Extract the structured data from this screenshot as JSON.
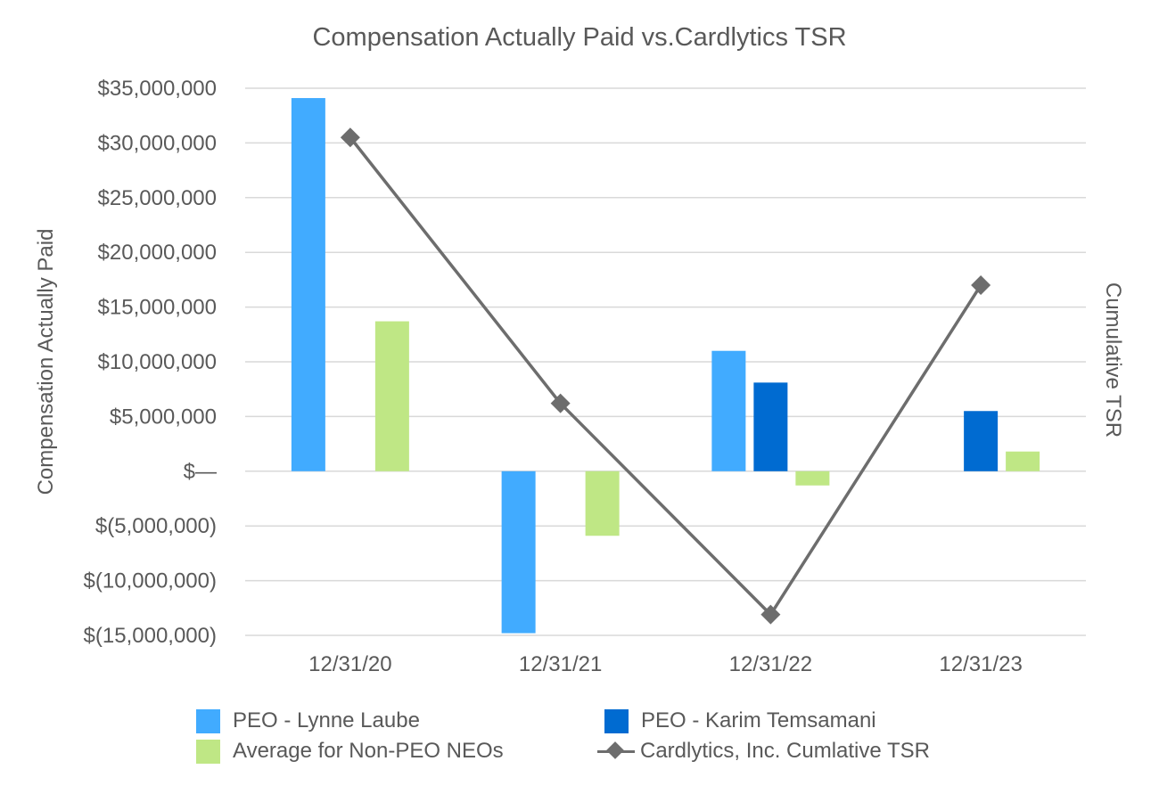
{
  "chart_data": {
    "type": "bar",
    "title": "Compensation Actually Paid vs.Cardlytics TSR",
    "ylabel": "Compensation Actually Paid",
    "y2label": "Cumulative TSR",
    "categories": [
      "12/31/20",
      "12/31/21",
      "12/31/22",
      "12/31/23"
    ],
    "ylim": [
      -15000000,
      35000000
    ],
    "yticks": [
      35000000,
      30000000,
      25000000,
      20000000,
      15000000,
      10000000,
      5000000,
      0,
      -5000000,
      -10000000,
      -15000000
    ],
    "ytick_labels": [
      "$35,000,000",
      "$30,000,000",
      "$25,000,000",
      "$20,000,000",
      "$15,000,000",
      "$10,000,000",
      "$5,000,000",
      "$—",
      "$(5,000,000)",
      "$(10,000,000)",
      "$(15,000,000)"
    ],
    "grid": true,
    "legend_position": "bottom",
    "series": [
      {
        "name": "PEO - Lynne Laube",
        "kind": "bar",
        "color": "#41abff",
        "values": [
          34100000,
          -14800000,
          11000000,
          null
        ]
      },
      {
        "name": "PEO - Karim Temsamani",
        "kind": "bar",
        "color": "#006bd1",
        "values": [
          null,
          null,
          8100000,
          5500000
        ]
      },
      {
        "name": "Average for Non-PEO NEOs",
        "kind": "bar",
        "color": "#bfe785",
        "values": [
          13700000,
          -5900000,
          -1300000,
          1800000
        ]
      },
      {
        "name": "Cardlytics, Inc.  Cumlative TSR",
        "kind": "line",
        "axis": "right",
        "marker": "diamond",
        "color": "#6d6d6d",
        "values": [
          30500000,
          6200000,
          -13100000,
          17000000
        ]
      }
    ]
  }
}
